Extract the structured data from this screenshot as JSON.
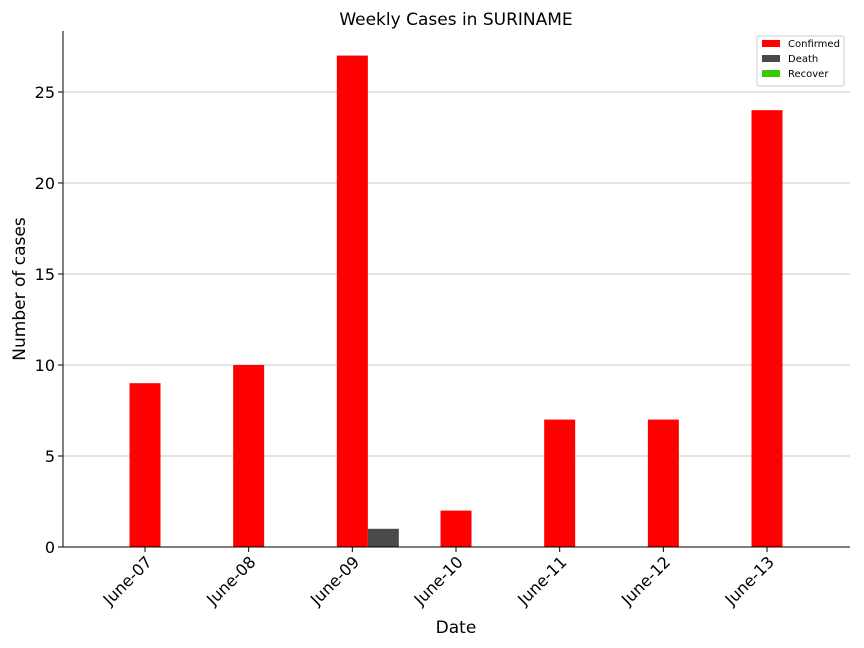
{
  "chart_data": {
    "type": "bar",
    "title": "Weekly Cases in SURINAME",
    "xlabel": "Date",
    "ylabel": "Number of cases",
    "categories": [
      "June-07",
      "June-08",
      "June-09",
      "June-10",
      "June-11",
      "June-12",
      "June-13"
    ],
    "series": [
      {
        "name": "Confirmed",
        "color": "#ff0000",
        "values": [
          9,
          10,
          27,
          2,
          7,
          7,
          24
        ]
      },
      {
        "name": "Death",
        "color": "#4a4a4a",
        "values": [
          0,
          0,
          1,
          0,
          0,
          0,
          0
        ]
      },
      {
        "name": "Recover",
        "color": "#33cc00",
        "values": [
          0,
          0,
          0,
          0,
          0,
          0,
          0
        ]
      }
    ],
    "ylim": [
      0,
      28.35
    ],
    "yticks": [
      0,
      5,
      10,
      15,
      20,
      25
    ],
    "grid": "horizontal",
    "legend_position": "top-right"
  }
}
